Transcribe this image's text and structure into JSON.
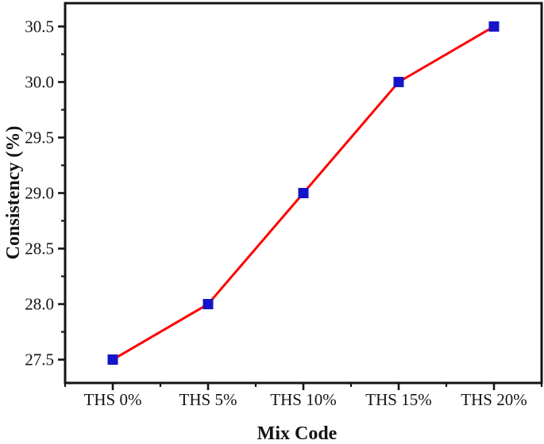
{
  "chart_data": {
    "type": "line",
    "title": "",
    "xlabel": "Mix Code",
    "ylabel": "Consistency (%)",
    "categories": [
      "THS 0%",
      "THS 5%",
      "THS 10%",
      "THS 15%",
      "THS 20%"
    ],
    "series": [
      {
        "name": "Consistency",
        "values": [
          27.5,
          28.0,
          29.0,
          30.0,
          30.5
        ],
        "line_color": "#fe0000",
        "marker_shape": "square",
        "marker_color": "#1414c8"
      }
    ],
    "ylim": [
      27.29,
      30.71
    ],
    "y_major_ticks": [
      27.5,
      28.0,
      28.5,
      29.0,
      29.5,
      30.0,
      30.5
    ],
    "y_tick_labels": [
      "27.5",
      "28.0",
      "28.5",
      "29.0",
      "29.5",
      "30.0",
      "30.5"
    ],
    "y_minor_step": 0.25,
    "x_minor_ticks": "band-edges",
    "grid": false,
    "legend": "none",
    "frame_color": "#141414",
    "background": "#ffffff"
  }
}
